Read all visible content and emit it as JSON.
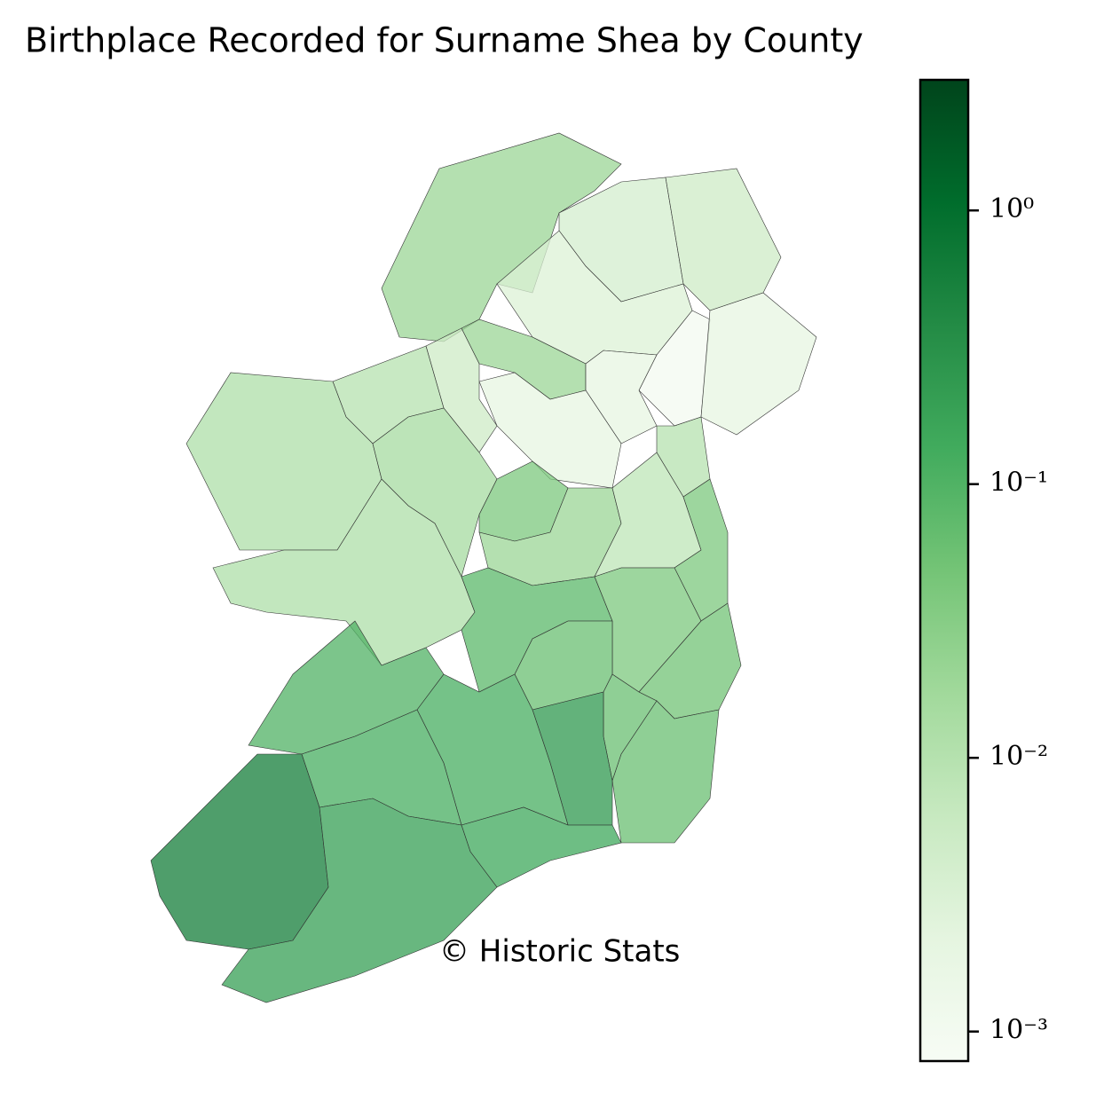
{
  "chart_data": {
    "type": "choropleth",
    "title": "Birthplace Recorded for Surname Shea by County",
    "annotation": "© Historic Stats",
    "values": [
      0.02,
      0.004,
      0.005,
      0.003,
      0.02,
      0.001,
      0.002,
      0.002,
      0.002,
      0.01,
      0.005,
      0.01,
      0.012,
      0.015,
      0.04,
      0.02,
      0.008,
      0.04,
      0.012,
      0.08,
      0.04,
      0.05,
      0.06,
      0.1,
      0.06,
      0.06,
      0.25,
      0.12,
      0.12,
      0.15,
      0.6,
      0.2
    ],
    "colormap": [
      "#f7fcf5",
      "#e5f5e0",
      "#c7e9c0",
      "#a1d99b",
      "#74c476",
      "#41ab5d",
      "#238b45",
      "#006d2c",
      "#00441b"
    ],
    "opacity": 0.75,
    "log_scale": true,
    "ylim": [
      0.00078,
      3.0
    ],
    "yticks": [
      {
        "value": 1,
        "label": "10⁰"
      },
      {
        "value": 0.1,
        "label": "10⁻¹"
      },
      {
        "value": 0.01,
        "label": "10⁻²"
      },
      {
        "value": 0.001,
        "label": "10⁻³"
      }
    ]
  }
}
